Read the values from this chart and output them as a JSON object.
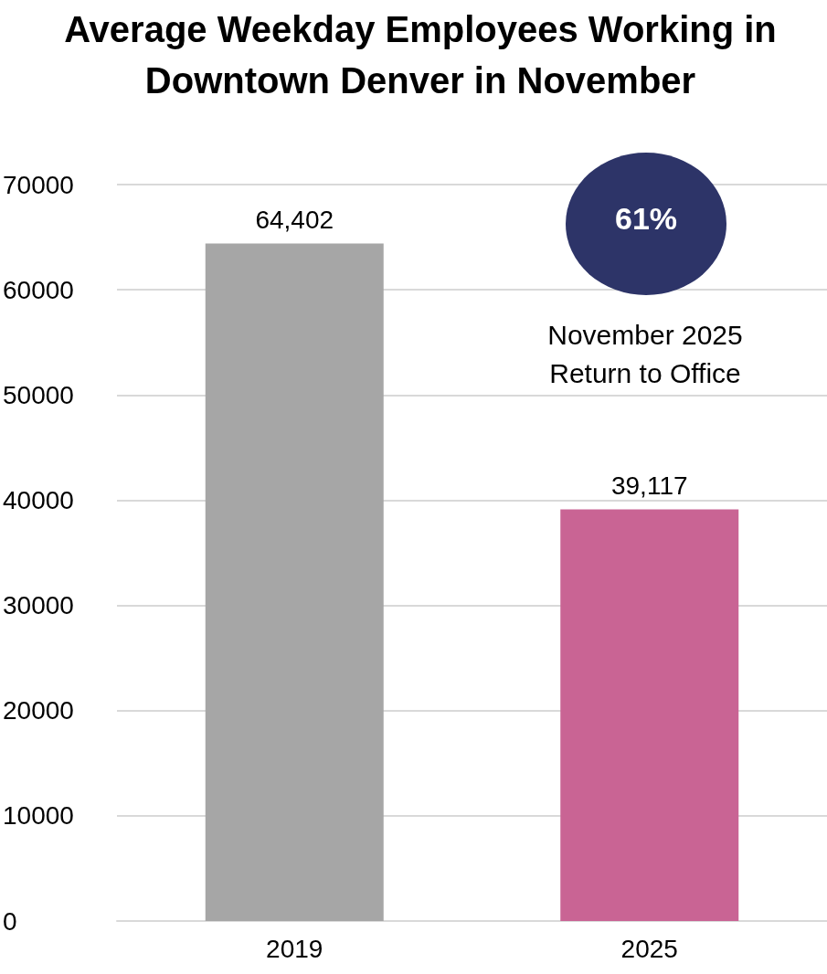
{
  "chart_data": {
    "type": "bar",
    "title": "Average Weekday Employees Working in Downtown Denver in November",
    "categories": [
      "2019",
      "2025"
    ],
    "values": [
      64402,
      39117
    ],
    "colors": [
      "#a6a6a6",
      "#c96494"
    ],
    "value_labels": [
      "64,402",
      "39,117"
    ],
    "ylim": [
      0,
      70000
    ],
    "yticks": [
      0,
      10000,
      20000,
      30000,
      40000,
      50000,
      60000,
      70000
    ],
    "grid": "y",
    "annotations": [
      "61%",
      "November 2025 Return to Office"
    ]
  }
}
